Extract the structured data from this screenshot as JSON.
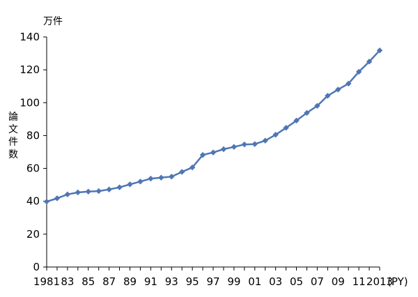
{
  "chart_data": {
    "type": "line",
    "unit_label": "万件",
    "ylabel": "論文件数",
    "xunit_label": "(PY)",
    "ylim": [
      0,
      140
    ],
    "yticks": [
      0,
      20,
      40,
      60,
      80,
      100,
      120,
      140
    ],
    "x": [
      1981,
      1982,
      1983,
      1984,
      1985,
      1986,
      1987,
      1988,
      1989,
      1990,
      1991,
      1992,
      1993,
      1994,
      1995,
      1996,
      1997,
      1998,
      1999,
      2000,
      2001,
      2002,
      2003,
      2004,
      2005,
      2006,
      2007,
      2008,
      2009,
      2010,
      2011,
      2012,
      2013
    ],
    "xtick_labels": [
      "1981",
      "83",
      "85",
      "87",
      "89",
      "91",
      "93",
      "95",
      "97",
      "99",
      "01",
      "03",
      "05",
      "07",
      "09",
      "11",
      "2013"
    ],
    "xtick_values": [
      1981,
      1983,
      1985,
      1987,
      1989,
      1991,
      1993,
      1995,
      1997,
      1999,
      2001,
      2003,
      2005,
      2007,
      2009,
      2011,
      2013
    ],
    "series": [
      {
        "values": [
          39.8,
          41.8,
          44.2,
          45.4,
          45.9,
          46.2,
          47.2,
          48.5,
          50.3,
          52.0,
          53.8,
          54.4,
          55.0,
          57.9,
          60.6,
          68.2,
          69.7,
          71.7,
          73.1,
          74.6,
          74.8,
          76.9,
          80.5,
          84.7,
          89.1,
          93.8,
          98.1,
          104.2,
          108.0,
          111.6,
          118.8,
          125.0,
          131.8
        ],
        "color": "#4f76b4"
      }
    ]
  }
}
